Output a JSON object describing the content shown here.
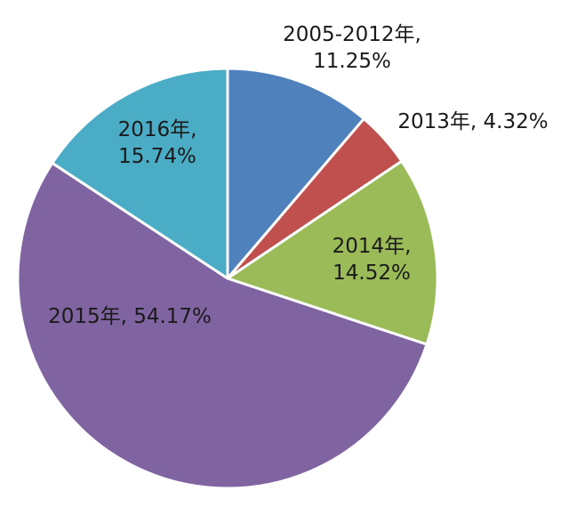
{
  "chart_data": {
    "type": "pie",
    "title": "",
    "slices": [
      {
        "label": "2005-2012年",
        "value": 11.25,
        "text": "11.25%",
        "color": "#4f81bd"
      },
      {
        "label": "2013年",
        "value": 4.32,
        "text": "4.32%",
        "color": "#c0504d"
      },
      {
        "label": "2014年",
        "value": 14.52,
        "text": "14.52%",
        "color": "#9bbb59"
      },
      {
        "label": "2015年",
        "value": 54.17,
        "text": "54.17%",
        "color": "#8064a2"
      },
      {
        "label": "2016年",
        "value": 15.74,
        "text": "15.74%",
        "color": "#4bacc6"
      }
    ],
    "start_angle_deg": 0,
    "direction": "clockwise",
    "legend": "none",
    "label_position": "mixed"
  }
}
